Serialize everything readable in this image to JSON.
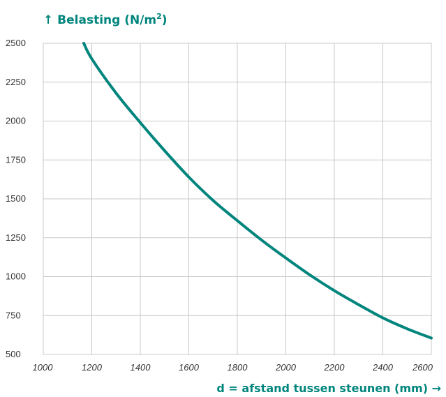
{
  "chart_data": {
    "type": "line",
    "ylabel_prefix": "↑ Belasting (N/m",
    "ylabel_sup": "2",
    "ylabel_suffix": ")",
    "xlabel": "d = afstand tussen steunen (mm) →",
    "xlim": [
      1000,
      2600
    ],
    "ylim": [
      500,
      2500
    ],
    "x_ticks": [
      "1000",
      "1200",
      "1400",
      "1600",
      "1800",
      "2000",
      "2200",
      "2400",
      "2600"
    ],
    "y_ticks": [
      "2500",
      "2250",
      "2000",
      "1750",
      "1500",
      "1250",
      "1000",
      "750",
      "500"
    ],
    "grid": true,
    "colors": {
      "line": "#00857d",
      "label": "#00857d",
      "grid": "#c8c8c8",
      "tick_text": "#333333"
    },
    "series": [
      {
        "x": [
          1167,
          1200,
          1300,
          1400,
          1500,
          1600,
          1700,
          1800,
          1900,
          2000,
          2100,
          2200,
          2300,
          2400,
          2500,
          2600
        ],
        "values": [
          2500,
          2400,
          2180,
          1990,
          1810,
          1640,
          1490,
          1360,
          1235,
          1120,
          1010,
          910,
          820,
          735,
          665,
          605
        ]
      }
    ]
  }
}
